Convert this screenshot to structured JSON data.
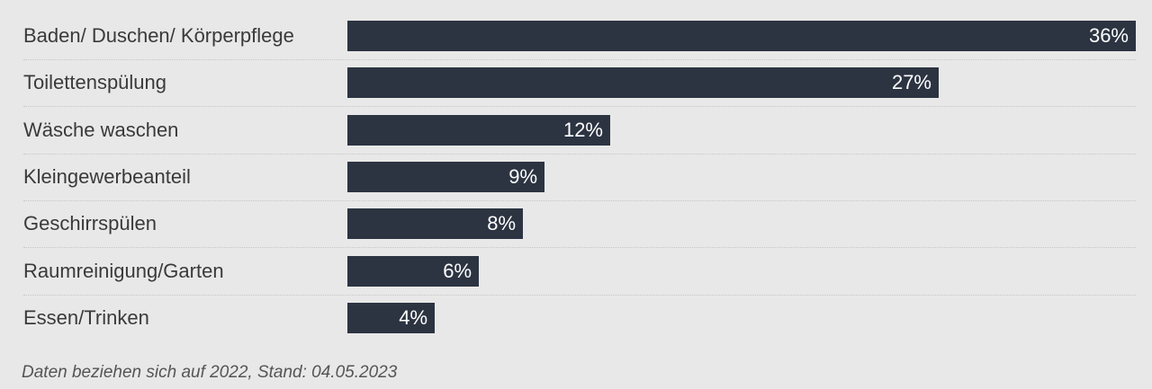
{
  "chart_data": {
    "type": "bar",
    "orientation": "horizontal",
    "categories": [
      "Baden/ Duschen/ Körperpflege",
      "Toilettenspülung",
      "Wäsche waschen",
      "Kleingewerbeanteil",
      "Geschirrspülen",
      "Raumreinigung/Garten",
      "Essen/Trinken"
    ],
    "values": [
      36,
      27,
      12,
      9,
      8,
      6,
      4
    ],
    "value_labels": [
      "36%",
      "27%",
      "12%",
      "9%",
      "8%",
      "6%",
      "4%"
    ],
    "xlim": [
      0,
      36
    ],
    "grid": false,
    "bar_color": "#2c3442",
    "label_color": "#ffffff"
  },
  "footnote": "Daten beziehen sich auf 2022, Stand: 04.05.2023"
}
